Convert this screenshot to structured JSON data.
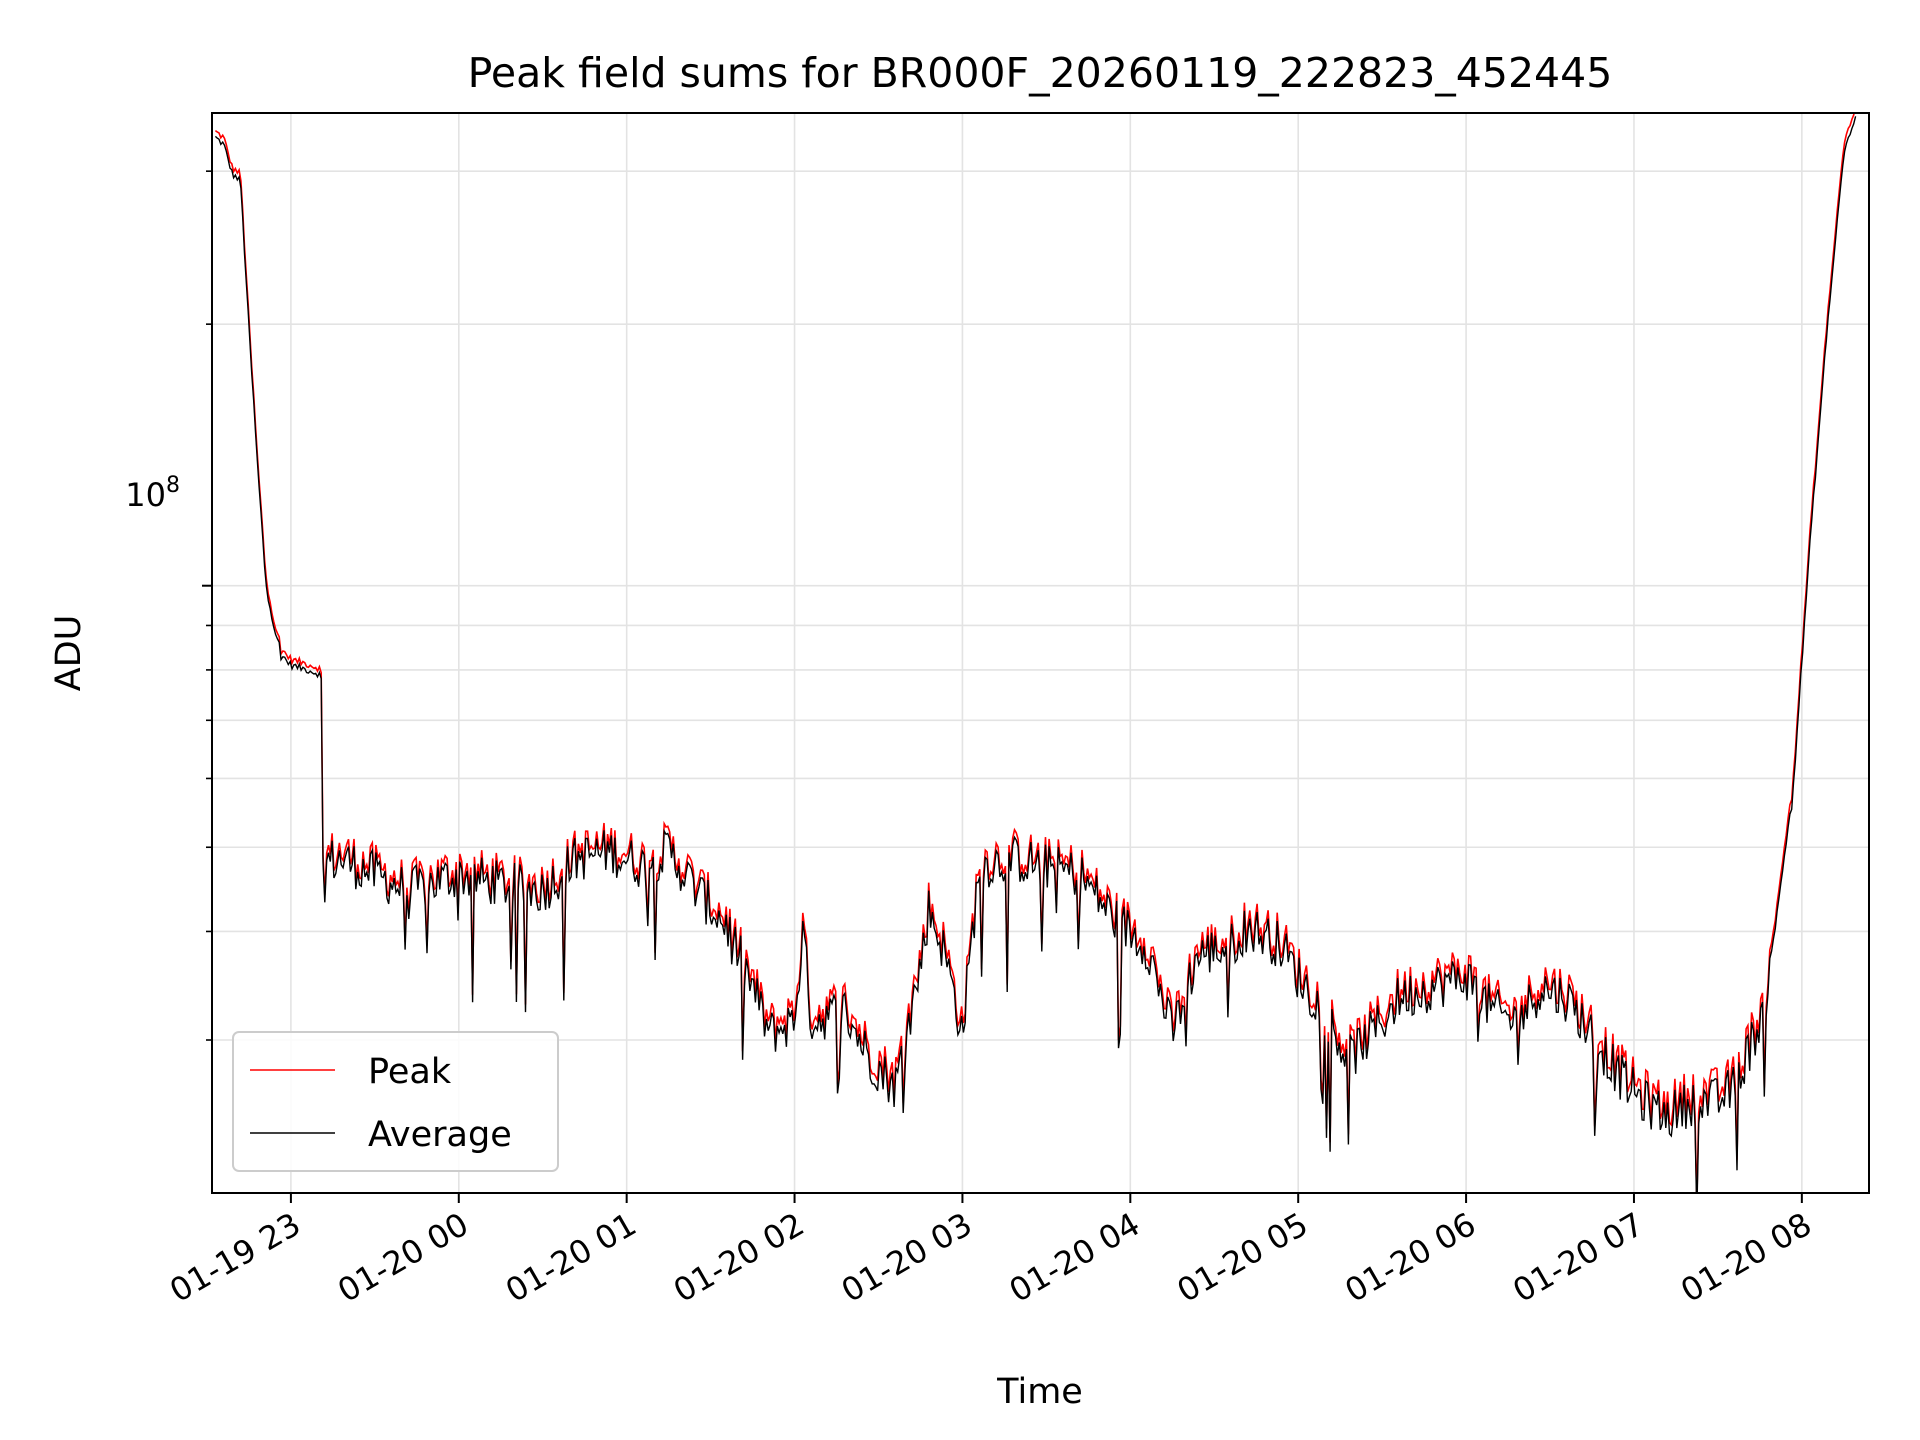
{
  "chart_data": {
    "type": "line",
    "title": "Peak field sums for BR000F_20260119_222823_452445",
    "xlabel": "Time",
    "ylabel": "ADU",
    "yscale": "log",
    "ylim": [
      20000000,
      350000000
    ],
    "xlim_hours": [
      22.53,
      32.4
    ],
    "grid": true,
    "legend_position": "lower-left",
    "x_ticks": [
      {
        "label": "01-19 23",
        "hour": 23
      },
      {
        "label": "01-20 00",
        "hour": 24
      },
      {
        "label": "01-20 01",
        "hour": 25
      },
      {
        "label": "01-20 02",
        "hour": 26
      },
      {
        "label": "01-20 03",
        "hour": 27
      },
      {
        "label": "01-20 04",
        "hour": 28
      },
      {
        "label": "01-20 05",
        "hour": 29
      },
      {
        "label": "01-20 06",
        "hour": 30
      },
      {
        "label": "01-20 07",
        "hour": 31
      },
      {
        "label": "01-20 08",
        "hour": 32
      }
    ],
    "y_major_tick": {
      "value": 100000000,
      "base": "10",
      "exp": "8"
    },
    "y_minor_ticks": [
      30000000,
      40000000,
      50000000,
      60000000,
      70000000,
      80000000,
      90000000,
      200000000,
      300000000
    ],
    "series": [
      {
        "name": "Peak",
        "color": "#ff0000",
        "points": [
          [
            22.55,
            330000000.0
          ],
          [
            22.6,
            325000000.0
          ],
          [
            22.65,
            300000000.0
          ],
          [
            22.7,
            295000000.0
          ],
          [
            22.75,
            200000000.0
          ],
          [
            22.8,
            140000000.0
          ],
          [
            22.85,
            102000000.0
          ],
          [
            22.9,
            90000000.0
          ],
          [
            22.95,
            83500000.0
          ],
          [
            23.0,
            81500000.0
          ],
          [
            23.1,
            80500000.0
          ],
          [
            23.18,
            79500000.0
          ],
          [
            23.19,
            48500000.0
          ],
          [
            23.3,
            49000000.0
          ],
          [
            23.5,
            47000000.0
          ],
          [
            23.7,
            45000000.0
          ],
          [
            24.0,
            47000000.0
          ],
          [
            24.2,
            46000000.0
          ],
          [
            24.5,
            45000000.0
          ],
          [
            24.7,
            49000000.0
          ],
          [
            24.9,
            50000000.0
          ],
          [
            25.1,
            48000000.0
          ],
          [
            25.25,
            50000000.0
          ],
          [
            25.4,
            45500000.0
          ],
          [
            25.6,
            41000000.0
          ],
          [
            25.75,
            35000000.0
          ],
          [
            25.85,
            31000000.0
          ],
          [
            26.0,
            32000000.0
          ],
          [
            26.05,
            40500000.0
          ],
          [
            26.1,
            32000000.0
          ],
          [
            26.3,
            33000000.0
          ],
          [
            26.45,
            29000000.0
          ],
          [
            26.6,
            27000000.0
          ],
          [
            26.75,
            37000000.0
          ],
          [
            26.8,
            43000000.0
          ],
          [
            26.9,
            38000000.0
          ],
          [
            27.0,
            31000000.0
          ],
          [
            27.1,
            48000000.0
          ],
          [
            27.3,
            49000000.0
          ],
          [
            27.5,
            48000000.0
          ],
          [
            27.7,
            47000000.0
          ],
          [
            27.9,
            42000000.0
          ],
          [
            28.1,
            39000000.0
          ],
          [
            28.25,
            31000000.0
          ],
          [
            28.4,
            38000000.0
          ],
          [
            28.6,
            39000000.0
          ],
          [
            28.7,
            41000000.0
          ],
          [
            28.9,
            39000000.0
          ],
          [
            29.0,
            36000000.0
          ],
          [
            29.15,
            33000000.0
          ],
          [
            29.3,
            29000000.0
          ],
          [
            29.5,
            32000000.0
          ],
          [
            29.6,
            34000000.0
          ],
          [
            29.8,
            35000000.0
          ],
          [
            30.0,
            36000000.0
          ],
          [
            30.15,
            33000000.0
          ],
          [
            30.3,
            32000000.0
          ],
          [
            30.45,
            35000000.0
          ],
          [
            30.6,
            34000000.0
          ],
          [
            30.75,
            31000000.0
          ],
          [
            30.9,
            28000000.0
          ],
          [
            31.05,
            26000000.0
          ],
          [
            31.2,
            25000000.0
          ],
          [
            31.35,
            26000000.0
          ],
          [
            31.5,
            26000000.0
          ],
          [
            31.6,
            27000000.0
          ],
          [
            31.75,
            32000000.0
          ],
          [
            31.85,
            42000000.0
          ],
          [
            31.95,
            60000000.0
          ],
          [
            32.05,
            115000000.0
          ],
          [
            32.15,
            200000000.0
          ],
          [
            32.25,
            320000000.0
          ],
          [
            32.32,
            350000000.0
          ]
        ]
      },
      {
        "name": "Average",
        "color": "#000000",
        "points": [
          [
            22.55,
            328000000.0
          ],
          [
            22.6,
            322000000.0
          ],
          [
            22.65,
            298000000.0
          ],
          [
            22.7,
            292000000.0
          ],
          [
            22.75,
            198000000.0
          ],
          [
            22.8,
            139000000.0
          ],
          [
            22.85,
            101000000.0
          ],
          [
            22.9,
            89500000.0
          ],
          [
            22.95,
            83000000.0
          ],
          [
            23.0,
            81000000.0
          ],
          [
            23.1,
            80000000.0
          ],
          [
            23.18,
            79000000.0
          ],
          [
            23.19,
            48000000.0
          ],
          [
            23.3,
            48500000.0
          ],
          [
            23.5,
            46500000.0
          ],
          [
            23.7,
            44500000.0
          ],
          [
            24.0,
            46500000.0
          ],
          [
            24.2,
            45500000.0
          ],
          [
            24.5,
            44500000.0
          ],
          [
            24.7,
            48500000.0
          ],
          [
            24.9,
            49500000.0
          ],
          [
            25.1,
            47500000.0
          ],
          [
            25.25,
            49500000.0
          ],
          [
            25.4,
            45000000.0
          ],
          [
            25.6,
            40500000.0
          ],
          [
            25.75,
            34500000.0
          ],
          [
            25.85,
            30500000.0
          ],
          [
            26.0,
            31500000.0
          ],
          [
            26.05,
            40000000.0
          ],
          [
            26.1,
            31500000.0
          ],
          [
            26.3,
            32500000.0
          ],
          [
            26.45,
            28500000.0
          ],
          [
            26.6,
            26500000.0
          ],
          [
            26.75,
            36500000.0
          ],
          [
            26.8,
            42500000.0
          ],
          [
            26.9,
            37500000.0
          ],
          [
            27.0,
            30500000.0
          ],
          [
            27.1,
            47500000.0
          ],
          [
            27.3,
            48500000.0
          ],
          [
            27.5,
            47500000.0
          ],
          [
            27.7,
            46500000.0
          ],
          [
            27.9,
            41500000.0
          ],
          [
            28.1,
            38500000.0
          ],
          [
            28.25,
            30500000.0
          ],
          [
            28.4,
            37500000.0
          ],
          [
            28.6,
            38500000.0
          ],
          [
            28.7,
            40500000.0
          ],
          [
            28.9,
            38500000.0
          ],
          [
            29.0,
            35500000.0
          ],
          [
            29.15,
            32500000.0
          ],
          [
            29.3,
            28500000.0
          ],
          [
            29.5,
            31500000.0
          ],
          [
            29.6,
            33500000.0
          ],
          [
            29.8,
            34500000.0
          ],
          [
            30.0,
            35500000.0
          ],
          [
            30.15,
            32500000.0
          ],
          [
            30.3,
            31500000.0
          ],
          [
            30.45,
            34500000.0
          ],
          [
            30.6,
            33500000.0
          ],
          [
            30.75,
            30500000.0
          ],
          [
            30.9,
            27500000.0
          ],
          [
            31.05,
            25500000.0
          ],
          [
            31.2,
            24500000.0
          ],
          [
            31.35,
            25500000.0
          ],
          [
            31.5,
            25500000.0
          ],
          [
            31.6,
            26500000.0
          ],
          [
            31.75,
            31500000.0
          ],
          [
            31.85,
            41500000.0
          ],
          [
            31.95,
            59000000.0
          ],
          [
            32.05,
            113000000.0
          ],
          [
            32.15,
            197000000.0
          ],
          [
            32.25,
            315000000.0
          ],
          [
            32.32,
            345000000.0
          ]
        ]
      }
    ]
  }
}
